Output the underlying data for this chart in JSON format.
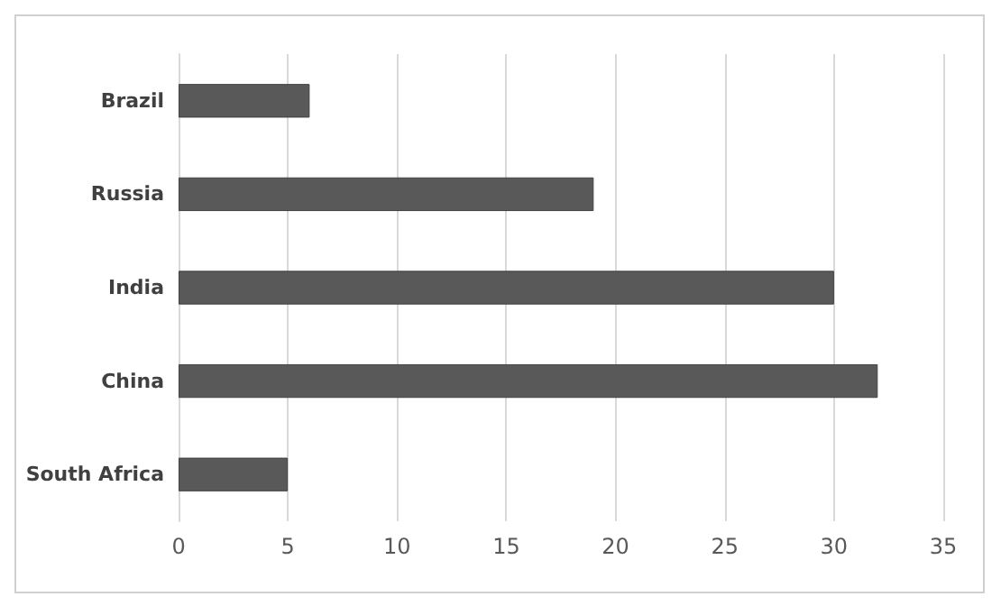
{
  "chart_data": {
    "type": "bar",
    "orientation": "horizontal",
    "categories": [
      "Brazil",
      "Russia",
      "India",
      "China",
      "South Africa"
    ],
    "values": [
      6,
      19,
      30,
      32,
      5
    ],
    "color": "#595959",
    "xlim": [
      0,
      35
    ],
    "xticks": [
      0,
      5,
      10,
      15,
      20,
      25,
      30,
      35
    ],
    "grid": "x"
  }
}
